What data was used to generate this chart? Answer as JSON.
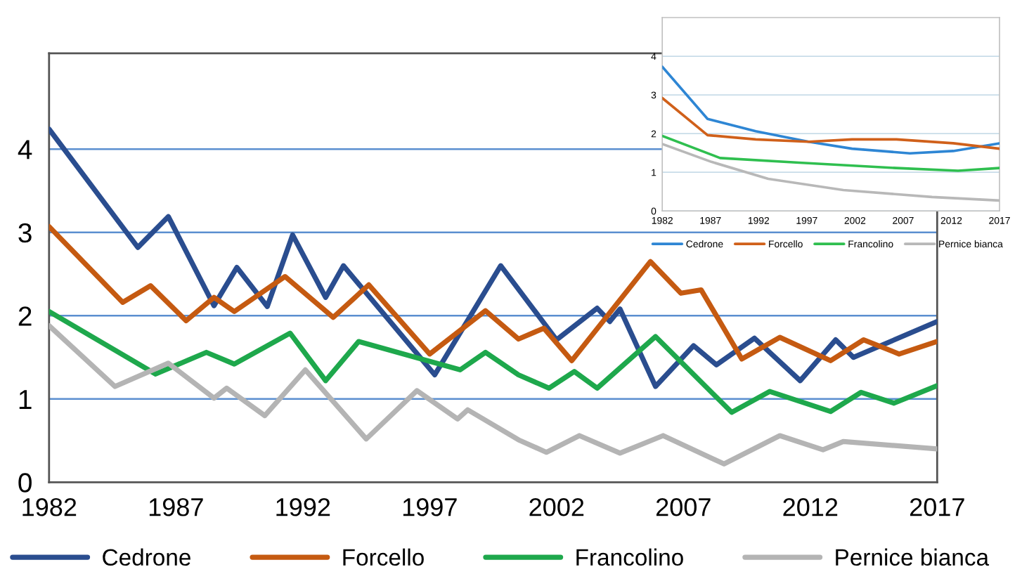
{
  "chart_data": [
    {
      "type": "line",
      "xlim": [
        1982,
        2017
      ],
      "ylim": [
        0,
        5.15
      ],
      "xticks": [
        1982,
        1987,
        1992,
        1997,
        2002,
        2007,
        2012,
        2017
      ],
      "yticks": [
        0,
        1,
        2,
        3,
        4
      ],
      "grid": "y",
      "legend": "bottom",
      "marker": "none",
      "line_style": "solid",
      "series": [
        {
          "name": "Cedrone",
          "color": "#2a4d8f",
          "x": [
            1982,
            1985.5,
            1986.7,
            1988.5,
            1989.4,
            1990.6,
            1991.6,
            1992.9,
            1993.6,
            1997.2,
            1999.8,
            2002.0,
            2003.6,
            2004.1,
            2004.5,
            2005.9,
            2007.4,
            2008.3,
            2009.8,
            2011.6,
            2013.0,
            2013.7,
            2017
          ],
          "values": [
            4.24,
            2.82,
            3.19,
            2.12,
            2.58,
            2.11,
            2.97,
            2.22,
            2.6,
            1.29,
            2.6,
            1.71,
            2.09,
            1.93,
            2.08,
            1.15,
            1.64,
            1.41,
            1.73,
            1.22,
            1.71,
            1.5,
            1.93
          ]
        },
        {
          "name": "Forcello",
          "color": "#c55a11",
          "x": [
            1982,
            1984.9,
            1986.0,
            1987.4,
            1988.5,
            1989.3,
            1991.3,
            1993.2,
            1994.6,
            1997.0,
            1999.2,
            2000.5,
            2001.5,
            2002.6,
            2005.7,
            2006.9,
            2007.7,
            2009.3,
            2010.8,
            2012.8,
            2014.1,
            2015.5,
            2017
          ],
          "values": [
            3.07,
            2.16,
            2.36,
            1.94,
            2.22,
            2.05,
            2.47,
            1.98,
            2.37,
            1.54,
            2.06,
            1.72,
            1.85,
            1.46,
            2.65,
            2.27,
            2.31,
            1.48,
            1.74,
            1.46,
            1.71,
            1.54,
            1.69
          ]
        },
        {
          "name": "Francolino",
          "color": "#1ea84c",
          "x": [
            1982,
            1986.2,
            1988.2,
            1989.3,
            1991.5,
            1992.9,
            1994.2,
            1998.2,
            1999.2,
            2000.5,
            2001.7,
            2002.7,
            2003.6,
            2005.9,
            2008.9,
            2010.4,
            2012.8,
            2014.0,
            2015.3,
            2017
          ],
          "values": [
            2.05,
            1.3,
            1.56,
            1.42,
            1.79,
            1.22,
            1.69,
            1.35,
            1.56,
            1.29,
            1.13,
            1.33,
            1.13,
            1.75,
            0.84,
            1.09,
            0.85,
            1.08,
            0.95,
            1.16
          ]
        },
        {
          "name": "Pernice bianca",
          "color": "#b4b4b4",
          "x": [
            1982,
            1984.6,
            1986.7,
            1988.5,
            1989.0,
            1990.5,
            1992.1,
            1994.5,
            1996.5,
            1998.1,
            1998.5,
            2000.5,
            2001.6,
            2002.9,
            2004.5,
            2006.2,
            2008.6,
            2010.8,
            2012.5,
            2013.3,
            2017
          ],
          "values": [
            1.88,
            1.15,
            1.43,
            1.01,
            1.13,
            0.8,
            1.35,
            0.52,
            1.1,
            0.76,
            0.87,
            0.51,
            0.36,
            0.56,
            0.35,
            0.56,
            0.22,
            0.56,
            0.39,
            0.49,
            0.4
          ]
        }
      ]
    },
    {
      "type": "line",
      "xlim": [
        1982,
        2017
      ],
      "ylim": [
        0,
        5
      ],
      "xticks": [
        1982,
        1987,
        1992,
        1997,
        2002,
        2007,
        2012,
        2017
      ],
      "yticks": [
        0,
        1,
        2,
        3,
        4
      ],
      "grid": "y",
      "legend": "bottom",
      "marker": "none",
      "line_style": "solid",
      "series": [
        {
          "name": "Cedrone",
          "color": "#2e86d4",
          "x": [
            1982,
            1986.7,
            1991.7,
            1997.2,
            2001.7,
            2007.7,
            2012.2,
            2017
          ],
          "values": [
            3.73,
            2.38,
            2.06,
            1.79,
            1.61,
            1.49,
            1.55,
            1.75
          ]
        },
        {
          "name": "Forcello",
          "color": "#d0601a",
          "x": [
            1982,
            1986.7,
            1991.7,
            1997.2,
            2001.7,
            2006.3,
            2012.2,
            2017
          ],
          "values": [
            2.92,
            1.96,
            1.85,
            1.79,
            1.85,
            1.85,
            1.75,
            1.61
          ]
        },
        {
          "name": "Francolino",
          "color": "#2fbf4f",
          "x": [
            1982,
            1988,
            1996.2,
            2006.3,
            2012.7,
            2017
          ],
          "values": [
            1.94,
            1.37,
            1.25,
            1.11,
            1.04,
            1.11
          ]
        },
        {
          "name": "Pernice bianca",
          "color": "#b8b8b8",
          "x": [
            1982,
            1987.1,
            1993,
            2000.8,
            2010,
            2017
          ],
          "values": [
            1.73,
            1.27,
            0.83,
            0.54,
            0.36,
            0.27
          ]
        }
      ]
    }
  ]
}
